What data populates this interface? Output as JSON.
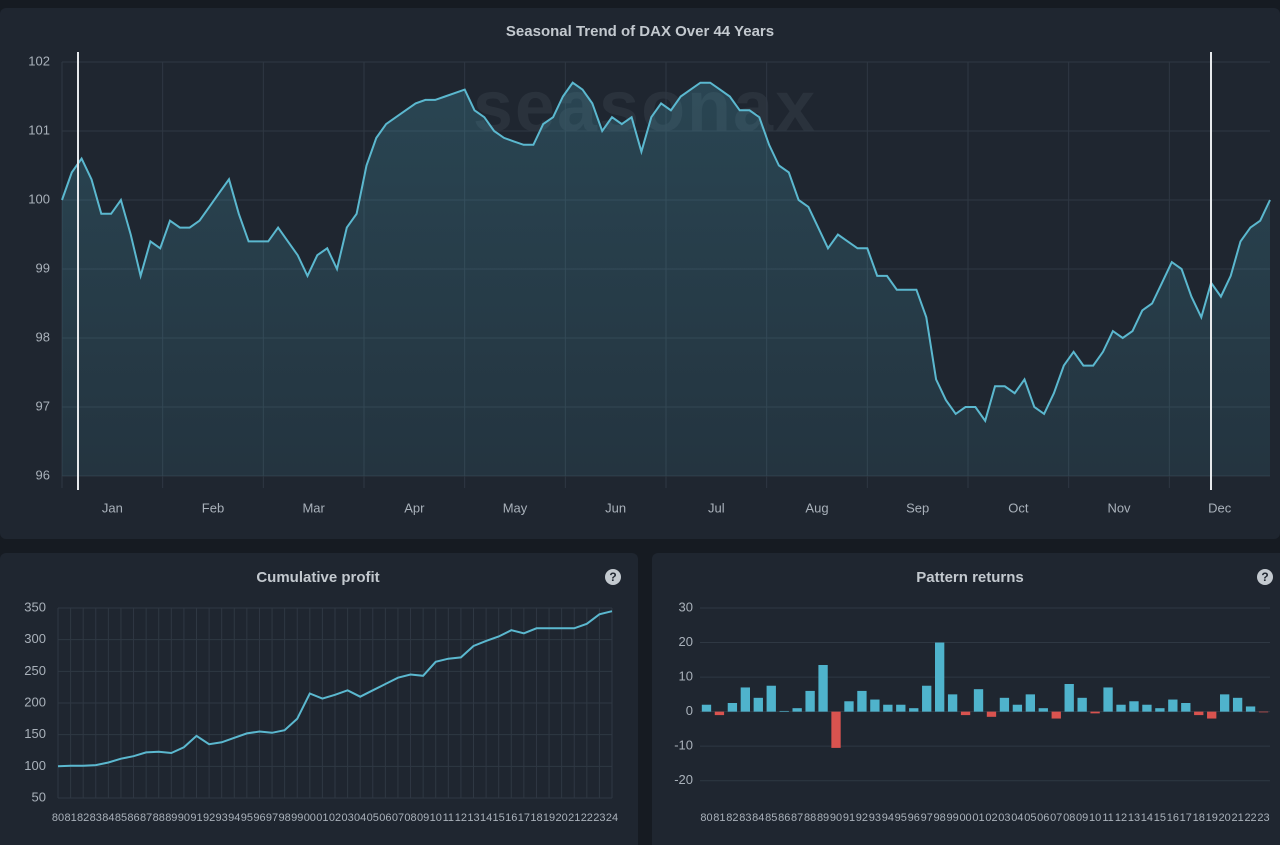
{
  "chart_data": [
    {
      "type": "line",
      "title": "Seasonal Trend of DAX Over 44 Years",
      "watermark": "seasonax",
      "area": true,
      "color": "#5bb8cf",
      "month_labels": [
        "Jan",
        "Feb",
        "Mar",
        "Apr",
        "May",
        "Jun",
        "Jul",
        "Aug",
        "Sep",
        "Oct",
        "Nov",
        "Dec"
      ],
      "values": [
        100.0,
        100.4,
        100.6,
        100.3,
        99.8,
        99.8,
        100.0,
        99.5,
        98.9,
        99.4,
        99.3,
        99.7,
        99.6,
        99.6,
        99.7,
        99.9,
        100.1,
        100.3,
        99.8,
        99.4,
        99.4,
        99.4,
        99.6,
        99.4,
        99.2,
        98.9,
        99.2,
        99.3,
        99.0,
        99.6,
        99.8,
        100.5,
        100.9,
        101.1,
        101.2,
        101.3,
        101.4,
        101.45,
        101.45,
        101.5,
        101.55,
        101.6,
        101.3,
        101.2,
        101.0,
        100.9,
        100.85,
        100.8,
        100.8,
        101.1,
        101.2,
        101.5,
        101.7,
        101.6,
        101.4,
        101.0,
        101.2,
        101.1,
        101.2,
        100.7,
        101.2,
        101.4,
        101.3,
        101.5,
        101.6,
        101.7,
        101.7,
        101.6,
        101.5,
        101.3,
        101.3,
        101.2,
        100.8,
        100.5,
        100.4,
        100.0,
        99.9,
        99.6,
        99.3,
        99.5,
        99.4,
        99.3,
        99.3,
        98.9,
        98.9,
        98.7,
        98.7,
        98.7,
        98.3,
        97.4,
        97.1,
        96.9,
        97.0,
        97.0,
        96.8,
        97.3,
        97.3,
        97.2,
        97.4,
        97.0,
        96.9,
        97.2,
        97.6,
        97.8,
        97.6,
        97.6,
        97.8,
        98.1,
        98.0,
        98.1,
        98.4,
        98.5,
        98.8,
        99.1,
        99.0,
        98.6,
        98.3,
        98.8,
        98.6,
        98.9,
        99.4,
        99.6,
        99.7,
        100.0
      ],
      "ylim": [
        96,
        102
      ],
      "yticks": [
        96,
        97,
        98,
        99,
        100,
        101,
        102
      ],
      "grid": true
    },
    {
      "type": "line",
      "title": "Cumulative profit",
      "help": "?",
      "color": "#5bb8cf",
      "area": false,
      "categories": [
        "80",
        "81",
        "82",
        "83",
        "84",
        "85",
        "86",
        "87",
        "88",
        "89",
        "90",
        "91",
        "92",
        "93",
        "94",
        "95",
        "96",
        "97",
        "98",
        "99",
        "00",
        "01",
        "02",
        "03",
        "04",
        "05",
        "06",
        "07",
        "08",
        "09",
        "10",
        "11",
        "12",
        "13",
        "14",
        "15",
        "16",
        "17",
        "18",
        "19",
        "20",
        "21",
        "22",
        "23",
        "24"
      ],
      "values": [
        100,
        101,
        101,
        102,
        106,
        112,
        116,
        122,
        123,
        121,
        130,
        148,
        135,
        138,
        145,
        152,
        155,
        153,
        157,
        175,
        215,
        207,
        213,
        220,
        210,
        220,
        230,
        240,
        245,
        243,
        265,
        270,
        272,
        290,
        298,
        305,
        315,
        310,
        318,
        318,
        318,
        318,
        325,
        340,
        345
      ],
      "ylim": [
        50,
        350
      ],
      "yticks": [
        50,
        100,
        150,
        200,
        250,
        300,
        350
      ],
      "grid": true
    },
    {
      "type": "bar",
      "title": "Pattern returns",
      "help": "?",
      "color": "#4fb3cc",
      "negative_color": "#d9534f",
      "categories": [
        "80",
        "81",
        "82",
        "83",
        "84",
        "85",
        "86",
        "87",
        "88",
        "89",
        "90",
        "91",
        "92",
        "93",
        "94",
        "95",
        "96",
        "97",
        "98",
        "99",
        "00",
        "01",
        "02",
        "03",
        "04",
        "05",
        "06",
        "07",
        "08",
        "09",
        "10",
        "11",
        "12",
        "13",
        "14",
        "15",
        "16",
        "17",
        "18",
        "19",
        "20",
        "21",
        "22",
        "23"
      ],
      "values": [
        2,
        -1,
        2.5,
        7,
        4,
        7.5,
        0.2,
        1,
        6,
        13.5,
        -10.5,
        3,
        6,
        3.5,
        2,
        2,
        1,
        7.5,
        20,
        5,
        -1,
        6.5,
        -1.5,
        4,
        2,
        5,
        1,
        -2,
        8,
        4,
        -0.5,
        7,
        2,
        3,
        2,
        1,
        3.5,
        2.5,
        -1,
        -2,
        5,
        4,
        1.5,
        -0.2
      ],
      "ylim": [
        -25,
        30
      ],
      "yticks": [
        -20,
        -10,
        0,
        10,
        20,
        30
      ],
      "grid": true
    }
  ]
}
